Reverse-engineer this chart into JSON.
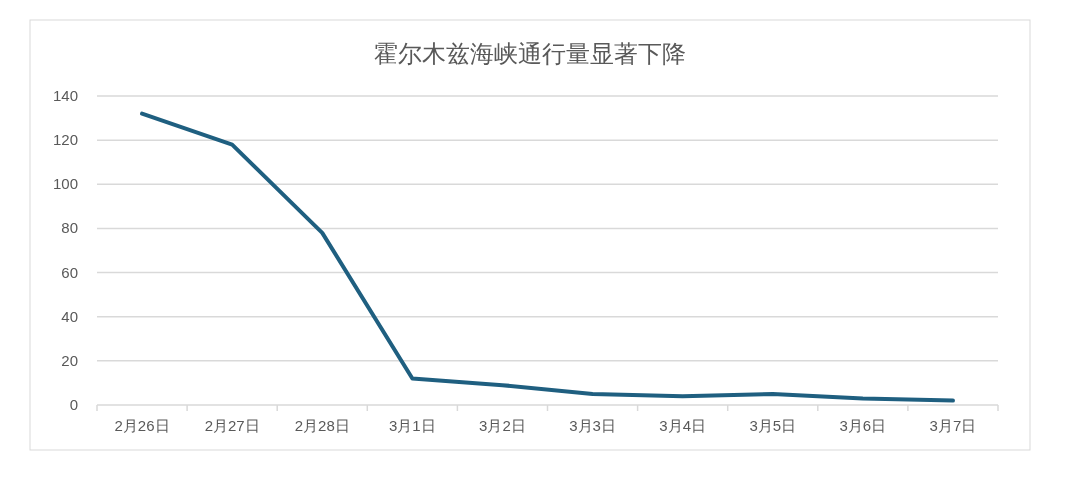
{
  "chart_data": {
    "type": "line",
    "title": "霍尔木兹海峡通行量显著下降",
    "categories": [
      "2月26日",
      "2月27日",
      "2月28日",
      "3月1日",
      "3月2日",
      "3月3日",
      "3月4日",
      "3月5日",
      "3月6日",
      "3月7日"
    ],
    "series": [
      {
        "color": "#1f5f80",
        "values": [
          132,
          118,
          78,
          12,
          9,
          5,
          4,
          5,
          3,
          2
        ]
      }
    ],
    "ylim": [
      0,
      140
    ],
    "yticks": [
      0,
      20,
      40,
      60,
      80,
      100,
      120,
      140
    ],
    "grid": "y",
    "marker": "none",
    "line_style": "solid"
  }
}
